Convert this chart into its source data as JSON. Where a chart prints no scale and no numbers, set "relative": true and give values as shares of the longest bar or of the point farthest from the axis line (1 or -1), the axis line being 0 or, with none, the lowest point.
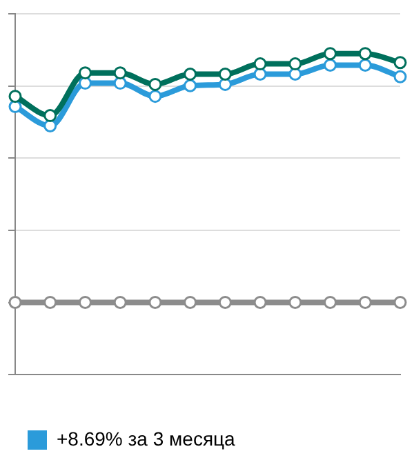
{
  "chart_data": {
    "type": "line",
    "relative": true,
    "categories": [
      null,
      null,
      null,
      null,
      null,
      null,
      null,
      null,
      null,
      null,
      null,
      null
    ],
    "series": [
      {
        "color": "#00705c",
        "values": [
          0.867,
          0.807,
          0.94,
          0.94,
          0.904,
          0.936,
          0.936,
          0.968,
          0.968,
          1,
          1,
          0.972
        ]
      },
      {
        "name": "+8.69% за 3 месяца",
        "color": "#2b9bda",
        "values": [
          0.835,
          0.775,
          0.908,
          0.908,
          0.867,
          0.9,
          0.904,
          0.936,
          0.936,
          0.964,
          0.964,
          0.928
        ]
      },
      {
        "color": "#8c8c8c",
        "values": [
          0.225,
          0.225,
          0.225,
          0.225,
          0.225,
          0.225,
          0.225,
          0.225,
          0.225,
          0.225,
          0.225,
          0.225
        ]
      }
    ],
    "grid": "y",
    "legend": "bottom left",
    "marker": "circle",
    "line_style": "solid"
  }
}
